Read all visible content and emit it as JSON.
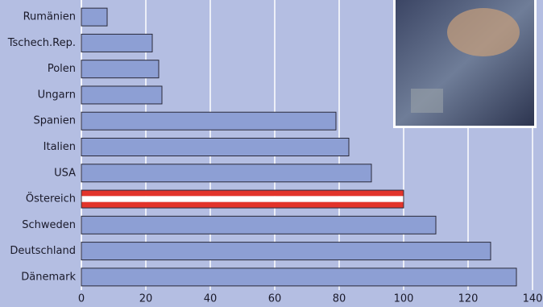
{
  "chart_data": {
    "type": "hbar",
    "categories": [
      "Rumänien",
      "Tschech.Rep.",
      "Polen",
      "Ungarn",
      "Spanien",
      "Italien",
      "USA",
      "Östereich",
      "Schweden",
      "Deutschland",
      "Dänemark"
    ],
    "values": [
      8,
      22,
      24,
      25,
      79,
      83,
      90,
      100,
      110,
      127,
      135
    ],
    "colors": [
      [
        "#8d9fd4"
      ],
      [
        "#8d9fd4"
      ],
      [
        "#8d9fd4"
      ],
      [
        "#8d9fd4"
      ],
      [
        "#8d9fd4"
      ],
      [
        "#8d9fd4"
      ],
      [
        "#8d9fd4"
      ],
      [
        "#e2342b",
        "#ffffff",
        "#e2342b"
      ],
      [
        "#8d9fd4"
      ],
      [
        "#8d9fd4"
      ],
      [
        "#8d9fd4"
      ]
    ],
    "xlim": [
      0,
      140
    ],
    "xticks": [
      0,
      20,
      40,
      60,
      80,
      100,
      120,
      140
    ],
    "grid": true
  }
}
